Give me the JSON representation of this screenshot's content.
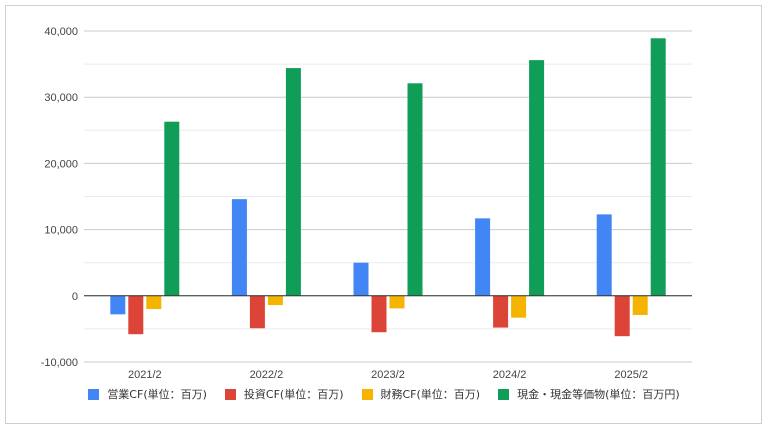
{
  "chart_data": {
    "type": "bar",
    "categories": [
      "2021/2",
      "2022/2",
      "2023/2",
      "2024/2",
      "2025/2"
    ],
    "ylim": [
      -10000,
      40000
    ],
    "yticks": [
      {
        "value": 40000,
        "label": "40,000"
      },
      {
        "value": 30000,
        "label": "30,000"
      },
      {
        "value": 20000,
        "label": "20,000"
      },
      {
        "value": 10000,
        "label": "10,000"
      },
      {
        "value": 0,
        "label": "0"
      },
      {
        "value": -10000,
        "label": "-10,000"
      }
    ],
    "grid": true,
    "legend_position": "bottom",
    "series": [
      {
        "name": "営業CF(単位：百万)",
        "color": "#4285f4",
        "values": [
          -2800,
          14600,
          5000,
          11700,
          12300
        ]
      },
      {
        "name": "投資CF(単位：百万)",
        "color": "#db4437",
        "values": [
          -5800,
          -4900,
          -5500,
          -4800,
          -6100
        ]
      },
      {
        "name": "財務CF(単位：百万)",
        "color": "#f4b400",
        "values": [
          -2000,
          -1400,
          -1900,
          -3300,
          -2900
        ]
      },
      {
        "name": "現金・現金等価物(単位：百万円)",
        "color": "#0f9d58",
        "values": [
          26300,
          34400,
          32100,
          35600,
          38900
        ]
      }
    ]
  }
}
